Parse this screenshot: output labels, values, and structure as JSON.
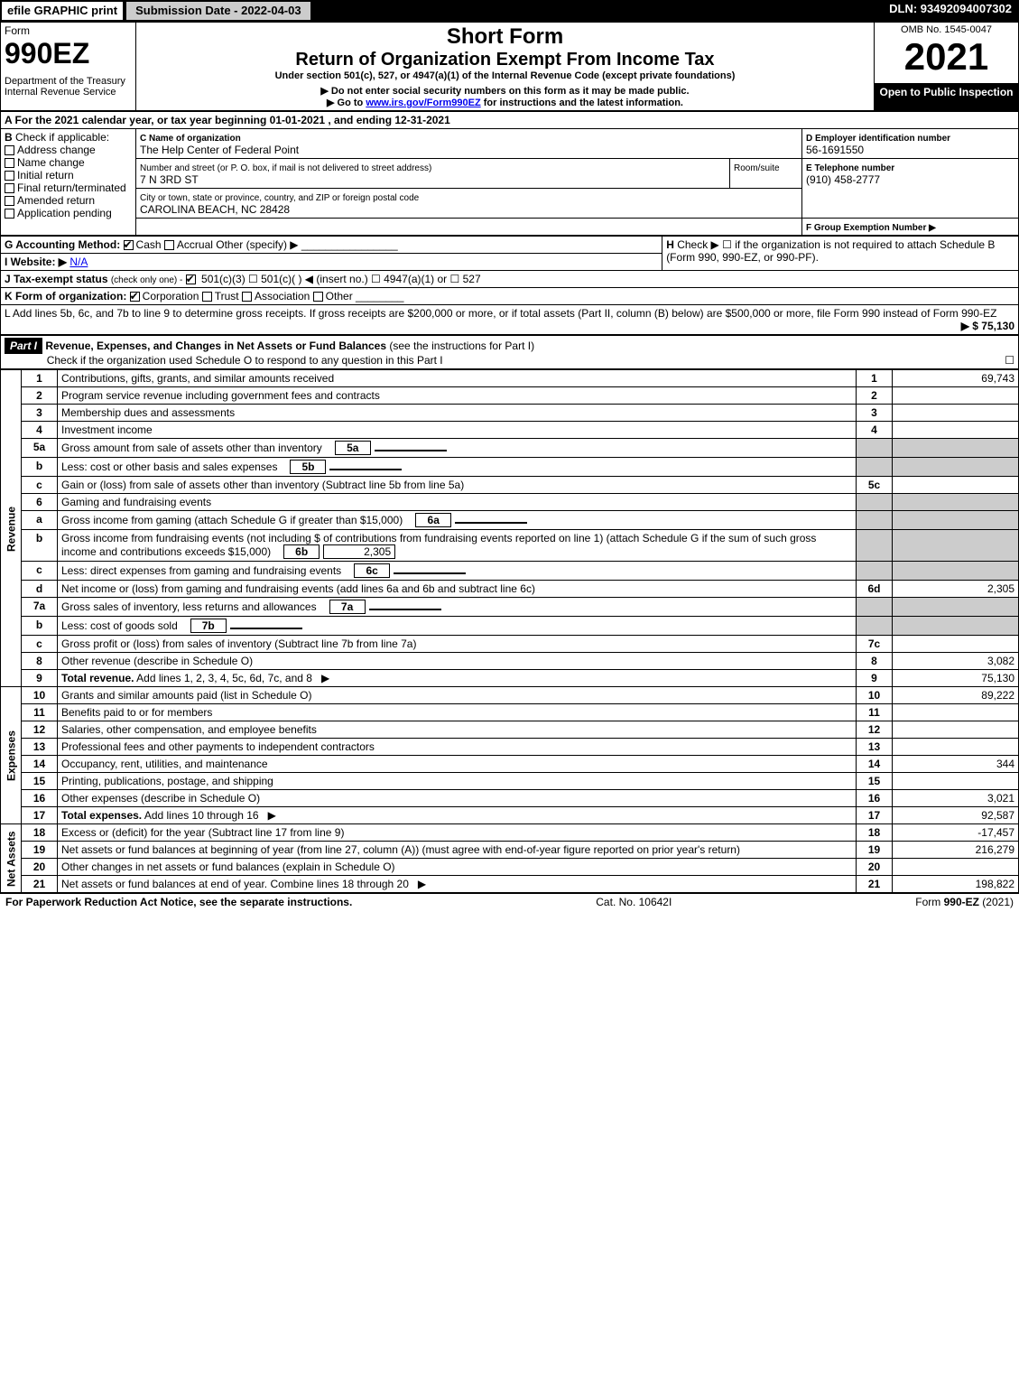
{
  "topbar": {
    "efile": "efile GRAPHIC print",
    "submission": "Submission Date - 2022-04-03",
    "dln": "DLN: 93492094007302"
  },
  "header": {
    "form_word": "Form",
    "form_num": "990EZ",
    "dept": "Department of the Treasury\nInternal Revenue Service",
    "short_form": "Short Form",
    "return_title": "Return of Organization Exempt From Income Tax",
    "under_section": "Under section 501(c), 527, or 4947(a)(1) of the Internal Revenue Code (except private foundations)",
    "no_ssn": "▶ Do not enter social security numbers on this form as it may be made public.",
    "goto": "▶ Go to ",
    "goto_link": "www.irs.gov/Form990EZ",
    "goto_after": " for instructions and the latest information.",
    "omb": "OMB No. 1545-0047",
    "year": "2021",
    "open": "Open to Public Inspection"
  },
  "section_a": "A  For the 2021 calendar year, or tax year beginning 01-01-2021 , and ending 12-31-2021",
  "section_b": {
    "label": "B",
    "check_if": "Check if applicable:",
    "opts": [
      "Address change",
      "Name change",
      "Initial return",
      "Final return/terminated",
      "Amended return",
      "Application pending"
    ]
  },
  "section_c": {
    "label_name": "C Name of organization",
    "org_name": "The Help Center of Federal Point",
    "label_addr": "Number and street (or P. O. box, if mail is not delivered to street address)",
    "room": "Room/suite",
    "addr": "7 N 3RD ST",
    "label_city": "City or town, state or province, country, and ZIP or foreign postal code",
    "city": "CAROLINA BEACH, NC  28428"
  },
  "section_d": {
    "label": "D Employer identification number",
    "ein": "56-1691550"
  },
  "section_e": {
    "label": "E Telephone number",
    "phone": "(910) 458-2777"
  },
  "section_f": {
    "label": "F Group Exemption Number   ▶"
  },
  "section_g": {
    "label": "G Accounting Method:",
    "cash": "Cash",
    "accrual": "Accrual",
    "other": "Other (specify) ▶"
  },
  "section_h": {
    "label": "H",
    "text": "Check ▶ ☐ if the organization is not required to attach Schedule B (Form 990, 990-EZ, or 990-PF)."
  },
  "section_i": {
    "label": "I Website: ▶",
    "value": "N/A"
  },
  "section_j": {
    "label": "J Tax-exempt status",
    "sub": "(check only one) -",
    "opts": "501(c)(3) ☐ 501(c)(  ) ◀ (insert no.) ☐ 4947(a)(1) or ☐ 527"
  },
  "section_k": {
    "label": "K Form of organization:",
    "corp": "Corporation",
    "trust": "Trust",
    "assoc": "Association",
    "other": "Other"
  },
  "section_l": {
    "text": "L Add lines 5b, 6c, and 7b to line 9 to determine gross receipts. If gross receipts are $200,000 or more, or if total assets (Part II, column (B) below) are $500,000 or more, file Form 990 instead of Form 990-EZ",
    "amount": "▶ $ 75,130"
  },
  "part1": {
    "label": "Part I",
    "title": "Revenue, Expenses, and Changes in Net Assets or Fund Balances",
    "instr": "(see the instructions for Part I)",
    "check": "Check if the organization used Schedule O to respond to any question in this Part I",
    "check_val": "☐"
  },
  "vert": {
    "revenue": "Revenue",
    "expenses": "Expenses",
    "netassets": "Net Assets"
  },
  "lines": [
    {
      "n": "1",
      "t": "Contributions, gifts, grants, and similar amounts received",
      "r": "1",
      "v": "69,743"
    },
    {
      "n": "2",
      "t": "Program service revenue including government fees and contracts",
      "r": "2",
      "v": ""
    },
    {
      "n": "3",
      "t": "Membership dues and assessments",
      "r": "3",
      "v": ""
    },
    {
      "n": "4",
      "t": "Investment income",
      "r": "4",
      "v": ""
    },
    {
      "n": "5a",
      "t": "Gross amount from sale of assets other than inventory",
      "sub": "5a",
      "sv": ""
    },
    {
      "n": "b",
      "t": "Less: cost or other basis and sales expenses",
      "sub": "5b",
      "sv": ""
    },
    {
      "n": "c",
      "t": "Gain or (loss) from sale of assets other than inventory (Subtract line 5b from line 5a)",
      "r": "5c",
      "v": ""
    },
    {
      "n": "6",
      "t": "Gaming and fundraising events"
    },
    {
      "n": "a",
      "t": "Gross income from gaming (attach Schedule G if greater than $15,000)",
      "sub": "6a",
      "sv": ""
    },
    {
      "n": "b",
      "t": "Gross income from fundraising events (not including $                      of contributions from fundraising events reported on line 1) (attach Schedule G if the sum of such gross income and contributions exceeds $15,000)",
      "sub": "6b",
      "sv": "2,305"
    },
    {
      "n": "c",
      "t": "Less: direct expenses from gaming and fundraising events",
      "sub": "6c",
      "sv": ""
    },
    {
      "n": "d",
      "t": "Net income or (loss) from gaming and fundraising events (add lines 6a and 6b and subtract line 6c)",
      "r": "6d",
      "v": "2,305"
    },
    {
      "n": "7a",
      "t": "Gross sales of inventory, less returns and allowances",
      "sub": "7a",
      "sv": ""
    },
    {
      "n": "b",
      "t": "Less: cost of goods sold",
      "sub": "7b",
      "sv": ""
    },
    {
      "n": "c",
      "t": "Gross profit or (loss) from sales of inventory (Subtract line 7b from line 7a)",
      "r": "7c",
      "v": ""
    },
    {
      "n": "8",
      "t": "Other revenue (describe in Schedule O)",
      "r": "8",
      "v": "3,082"
    },
    {
      "n": "9",
      "t": "Total revenue. Add lines 1, 2, 3, 4, 5c, 6d, 7c, and 8",
      "r": "9",
      "v": "75,130",
      "bold": true,
      "arrow": true
    }
  ],
  "expenses": [
    {
      "n": "10",
      "t": "Grants and similar amounts paid (list in Schedule O)",
      "r": "10",
      "v": "89,222"
    },
    {
      "n": "11",
      "t": "Benefits paid to or for members",
      "r": "11",
      "v": ""
    },
    {
      "n": "12",
      "t": "Salaries, other compensation, and employee benefits",
      "r": "12",
      "v": ""
    },
    {
      "n": "13",
      "t": "Professional fees and other payments to independent contractors",
      "r": "13",
      "v": ""
    },
    {
      "n": "14",
      "t": "Occupancy, rent, utilities, and maintenance",
      "r": "14",
      "v": "344"
    },
    {
      "n": "15",
      "t": "Printing, publications, postage, and shipping",
      "r": "15",
      "v": ""
    },
    {
      "n": "16",
      "t": "Other expenses (describe in Schedule O)",
      "r": "16",
      "v": "3,021"
    },
    {
      "n": "17",
      "t": "Total expenses. Add lines 10 through 16",
      "r": "17",
      "v": "92,587",
      "bold": true,
      "arrow": true
    }
  ],
  "netassets": [
    {
      "n": "18",
      "t": "Excess or (deficit) for the year (Subtract line 17 from line 9)",
      "r": "18",
      "v": "-17,457"
    },
    {
      "n": "19",
      "t": "Net assets or fund balances at beginning of year (from line 27, column (A)) (must agree with end-of-year figure reported on prior year's return)",
      "r": "19",
      "v": "216,279"
    },
    {
      "n": "20",
      "t": "Other changes in net assets or fund balances (explain in Schedule O)",
      "r": "20",
      "v": ""
    },
    {
      "n": "21",
      "t": "Net assets or fund balances at end of year. Combine lines 18 through 20",
      "r": "21",
      "v": "198,822",
      "arrow": true
    }
  ],
  "footer": {
    "left": "For Paperwork Reduction Act Notice, see the separate instructions.",
    "mid": "Cat. No. 10642I",
    "right": "Form 990-EZ (2021)"
  }
}
